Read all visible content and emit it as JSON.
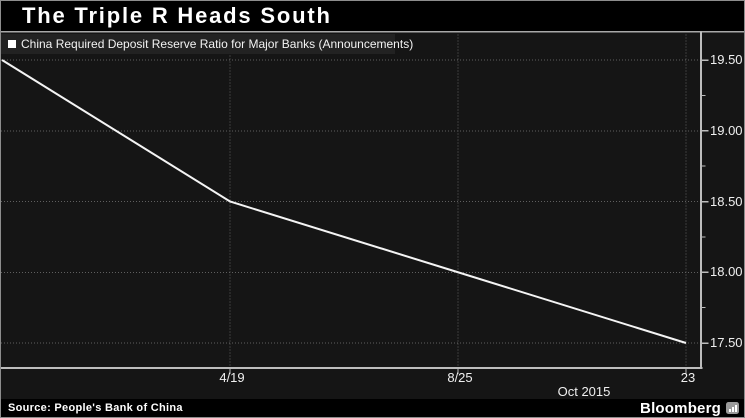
{
  "title": "The Triple R Heads South",
  "legend": {
    "marker_shape": "square",
    "marker_color": "#ffffff",
    "label": "China Required Deposit Reserve Ratio for Major Banks (Announcements)"
  },
  "footer": {
    "source_label": "Source: People's Bank of China",
    "brand": "Bloomberg",
    "brand_icon": "bar-chart-icon"
  },
  "chart_data": {
    "type": "line",
    "title": "The Triple R Heads South",
    "series": [
      {
        "name": "China Required Deposit Reserve Ratio for Major Banks (Announcements)",
        "values": [
          19.5,
          18.5,
          18.0,
          17.5
        ]
      }
    ],
    "x_description": "Announcement dates in 2015, evenly spaced; first point unlabeled at left edge",
    "x_ticks": [
      {
        "label": "4/19",
        "point_index": 1
      },
      {
        "label": "8/25",
        "point_index": 2
      },
      {
        "label": "23",
        "point_index": 3
      }
    ],
    "x_axis_note": "Oct 2015",
    "y_ticks": [
      "19.50",
      "19.00",
      "18.50",
      "18.00",
      "17.50"
    ],
    "y_tick_values": [
      19.5,
      19.0,
      18.5,
      18.0,
      17.5
    ],
    "y_minor_tick_values": [
      19.25,
      18.75,
      18.25,
      17.75
    ],
    "ylim": [
      17.32,
      19.72
    ],
    "y_axis_side": "right",
    "grid": "dotted horizontal lines at y ticks, dotted vertical lines at x ticks",
    "legend_position": "top-left inside plot",
    "colors": {
      "background": "#151515",
      "bars_background": "#000000",
      "legend_background": "#222222",
      "line": "#f4f4f4",
      "grid": "#5f5f5f",
      "axis": "#bdbdbd",
      "text": "#efefef"
    }
  }
}
